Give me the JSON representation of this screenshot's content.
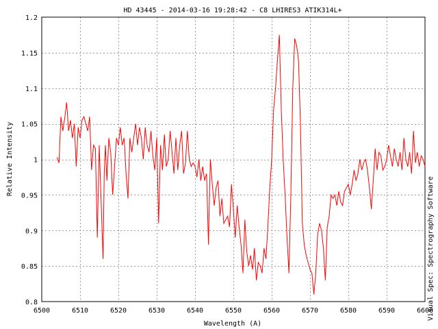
{
  "chart_data": {
    "type": "line",
    "title": "HD 43445 - 2014-03-16 19:28:42 - C8 LHIRES3  ATIK314L+",
    "xlabel": "Wavelength (A)",
    "ylabel": "Relative Intensity",
    "side_label": "Visual Spec: Spectrography Software",
    "xlim": [
      6500,
      6600
    ],
    "ylim": [
      0.8,
      1.2
    ],
    "xticks": [
      6500,
      6510,
      6520,
      6530,
      6540,
      6550,
      6560,
      6570,
      6580,
      6590,
      6600
    ],
    "yticks": [
      0.8,
      0.85,
      0.9,
      0.95,
      1,
      1.05,
      1.1,
      1.15,
      1.2
    ],
    "xtick_labels": [
      "6500",
      "6510",
      "6520",
      "6530",
      "6540",
      "6550",
      "6560",
      "6570",
      "6580",
      "6590",
      "6600"
    ],
    "ytick_labels": [
      "0.8",
      "0.85",
      "0.9",
      "0.95",
      "1",
      "1.05",
      "1.1",
      "1.15",
      "1.2"
    ],
    "grid": true,
    "series_color": "#ff0000",
    "series": [
      {
        "x": [
          6504.0,
          6504.5,
          6505.0,
          6505.5,
          6506.0,
          6506.5,
          6507.0,
          6507.5,
          6508.0,
          6508.5,
          6509.0,
          6509.5,
          6510.0,
          6510.5,
          6511.0,
          6511.5,
          6512.0,
          6512.5,
          6513.0,
          6513.5,
          6514.0,
          6514.5,
          6515.0,
          6515.5,
          6516.0,
          6516.3,
          6516.6,
          6517.0,
          6517.5,
          6518.0,
          6518.5,
          6519.0,
          6519.5,
          6520.0,
          6520.5,
          6521.0,
          6521.5,
          6522.0,
          6522.5,
          6523.0,
          6523.5,
          6524.0,
          6524.5,
          6525.0,
          6525.5,
          6526.0,
          6526.5,
          6527.0,
          6527.5,
          6528.0,
          6528.5,
          6529.0,
          6529.5,
          6530.0,
          6530.5,
          6531.0,
          6531.5,
          6532.0,
          6532.5,
          6533.0,
          6533.5,
          6534.0,
          6534.5,
          6535.0,
          6535.5,
          6536.0,
          6536.5,
          6537.0,
          6537.5,
          6538.0,
          6538.5,
          6539.0,
          6539.5,
          6540.0,
          6540.5,
          6541.0,
          6541.5,
          6542.0,
          6542.5,
          6543.0,
          6543.5,
          6543.8,
          6544.0,
          6544.5,
          6545.0,
          6545.5,
          6546.0,
          6546.5,
          6547.0,
          6547.5,
          6548.0,
          6548.5,
          6549.0,
          6549.5,
          6550.0,
          6550.5,
          6551.0,
          6551.5,
          6552.0,
          6552.5,
          6553.0,
          6553.5,
          6554.0,
          6554.5,
          6555.0,
          6555.5,
          6556.0,
          6556.5,
          6557.0,
          6557.5,
          6558.0,
          6558.5,
          6559.0,
          6559.5,
          6560.0,
          6560.5,
          6561.0,
          6561.5,
          6562.0,
          6562.5,
          6563.0,
          6563.5,
          6564.0,
          6564.5,
          6565.0,
          6565.5,
          6566.0,
          6566.5,
          6567.0,
          6567.5,
          6568.0,
          6568.5,
          6569.0,
          6569.5,
          6570.0,
          6570.5,
          6571.0,
          6571.5,
          6572.0,
          6572.5,
          6573.0,
          6573.5,
          6574.0,
          6574.5,
          6575.0,
          6575.5,
          6576.0,
          6576.5,
          6577.0,
          6577.5,
          6578.0,
          6578.5,
          6579.0,
          6579.5,
          6580.0,
          6580.5,
          6581.0,
          6581.5,
          6582.0,
          6582.5,
          6583.0,
          6583.5,
          6584.0,
          6584.5,
          6585.0,
          6585.5,
          6586.0,
          6586.5,
          6587.0,
          6587.5,
          6588.0,
          6588.5,
          6589.0,
          6589.5,
          6590.0,
          6590.5,
          6591.0,
          6591.5,
          6592.0,
          6592.5,
          6593.0,
          6593.5,
          6594.0,
          6594.5,
          6595.0,
          6595.5,
          6596.0,
          6596.5,
          6597.0,
          6597.5,
          6598.0,
          6598.5,
          6599.0,
          6599.5,
          6600.0
        ],
        "y": [
          1.003,
          0.995,
          1.06,
          1.04,
          1.058,
          1.08,
          1.04,
          1.055,
          1.03,
          1.05,
          0.99,
          1.045,
          1.03,
          1.055,
          1.06,
          1.05,
          1.04,
          1.06,
          0.985,
          1.02,
          1.015,
          0.89,
          1.02,
          0.94,
          0.86,
          0.98,
          1.02,
          0.97,
          1.03,
          1.01,
          0.95,
          0.99,
          1.03,
          1.02,
          1.045,
          1.02,
          1.03,
          0.98,
          0.945,
          1.03,
          1.01,
          1.03,
          1.05,
          1.02,
          1.045,
          1.03,
          1.0,
          1.045,
          1.02,
          1.01,
          1.04,
          1.005,
          0.985,
          1.03,
          0.91,
          1.02,
          0.985,
          1.035,
          0.99,
          1.0,
          1.04,
          1.01,
          0.98,
          1.03,
          0.985,
          1.02,
          1.04,
          0.98,
          0.995,
          1.04,
          1.0,
          0.99,
          0.995,
          0.99,
          0.975,
          1.0,
          0.97,
          0.99,
          0.97,
          0.98,
          0.88,
          0.96,
          1.0,
          0.965,
          0.935,
          0.96,
          0.97,
          0.92,
          0.945,
          0.91,
          0.915,
          0.92,
          0.905,
          0.965,
          0.93,
          0.89,
          0.935,
          0.905,
          0.88,
          0.84,
          0.915,
          0.87,
          0.85,
          0.865,
          0.845,
          0.875,
          0.83,
          0.855,
          0.85,
          0.84,
          0.875,
          0.86,
          0.905,
          0.96,
          1.0,
          1.07,
          1.1,
          1.14,
          1.175,
          1.07,
          1.0,
          0.95,
          0.89,
          0.84,
          0.95,
          1.1,
          1.17,
          1.16,
          1.14,
          1.05,
          0.91,
          0.88,
          0.865,
          0.855,
          0.845,
          0.84,
          0.81,
          0.84,
          0.895,
          0.91,
          0.9,
          0.875,
          0.83,
          0.905,
          0.92,
          0.95,
          0.945,
          0.95,
          0.935,
          0.955,
          0.94,
          0.935,
          0.955,
          0.96,
          0.965,
          0.95,
          0.965,
          0.985,
          0.97,
          0.98,
          1.0,
          0.985,
          0.995,
          1.0,
          0.985,
          0.96,
          0.93,
          0.97,
          1.015,
          0.985,
          1.01,
          1.005,
          0.985,
          0.99,
          1.0,
          1.02,
          1.005,
          0.99,
          1.015,
          1.0,
          0.99,
          1.01,
          0.985,
          1.03,
          1.0,
          0.99,
          1.01,
          0.98,
          1.04,
          0.995,
          1.01,
          0.99,
          1.005,
          1.0,
          0.99
        ]
      }
    ]
  }
}
